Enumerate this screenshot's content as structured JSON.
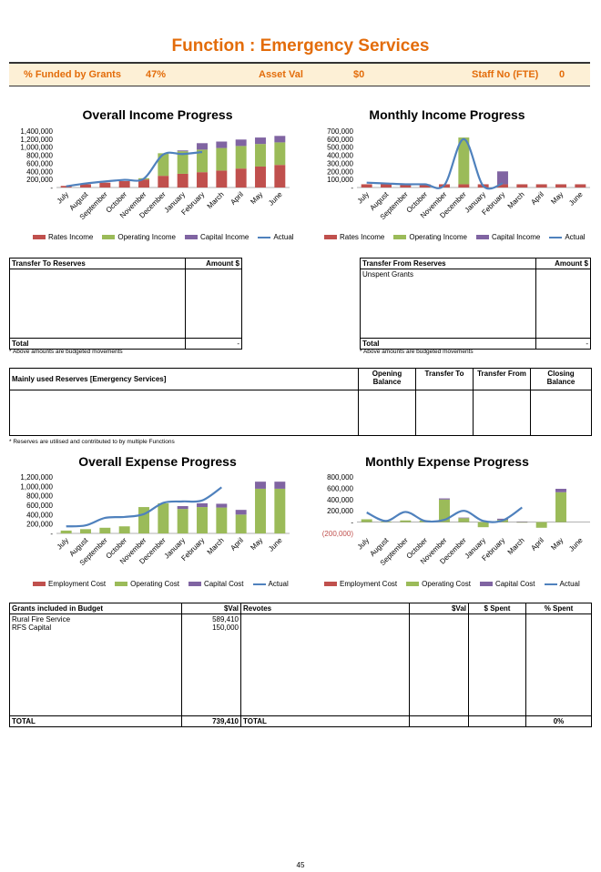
{
  "header": {
    "title": "Function : Emergency Services",
    "funded_label": "% Funded by Grants",
    "funded_value": "47%",
    "asset_label": "Asset Val",
    "asset_value": "$0",
    "staff_label": "Staff No (FTE)",
    "staff_value": "0"
  },
  "colors": {
    "title": "#e36c0a",
    "rates": "#c0504d",
    "operating": "#9bbb59",
    "capital": "#8064a2",
    "actual": "#4f81bd",
    "band": "#fdf0d6"
  },
  "months": [
    "July",
    "August",
    "September",
    "October",
    "November",
    "December",
    "January",
    "February",
    "March",
    "April",
    "May",
    "June"
  ],
  "chart_data": [
    {
      "type": "bar",
      "title": "Overall Income Progress",
      "stacked": true,
      "yticks": [
        "1,400,000",
        "1,200,000",
        "1,000,000",
        "800,000",
        "600,000",
        "400,000",
        "200,000",
        "-"
      ],
      "ylim": [
        0,
        1400000
      ],
      "series": [
        {
          "name": "Rates Income",
          "color": "#c0504d",
          "values": [
            40000,
            80000,
            120000,
            160000,
            200000,
            290000,
            340000,
            380000,
            420000,
            470000,
            520000,
            560000
          ]
        },
        {
          "name": "Operating Income",
          "color": "#9bbb59",
          "values": [
            0,
            0,
            0,
            0,
            30000,
            560000,
            560000,
            560000,
            560000,
            560000,
            560000,
            560000
          ]
        },
        {
          "name": "Capital Income",
          "color": "#8064a2",
          "values": [
            0,
            0,
            0,
            0,
            0,
            0,
            20000,
            160000,
            160000,
            160000,
            160000,
            160000
          ]
        }
      ],
      "actual": {
        "name": "Actual",
        "values": [
          30000,
          100000,
          150000,
          190000,
          220000,
          820000,
          830000,
          880000,
          null,
          null,
          null,
          null
        ]
      },
      "legend": [
        "Rates Income",
        "Operating Income",
        "Capital Income",
        "Actual"
      ]
    },
    {
      "type": "bar",
      "title": "Monthly Income Progress",
      "stacked": true,
      "yticks": [
        "700,000",
        "600,000",
        "500,000",
        "400,000",
        "300,000",
        "200,000",
        "100,000",
        "-"
      ],
      "ylim": [
        0,
        700000
      ],
      "series": [
        {
          "name": "Rates Income",
          "color": "#c0504d",
          "values": [
            40000,
            40000,
            40000,
            40000,
            40000,
            40000,
            40000,
            40000,
            40000,
            40000,
            40000,
            40000
          ]
        },
        {
          "name": "Operating Income",
          "color": "#9bbb59",
          "values": [
            0,
            0,
            0,
            0,
            0,
            580000,
            0,
            0,
            0,
            0,
            0,
            0
          ]
        },
        {
          "name": "Capital Income",
          "color": "#8064a2",
          "values": [
            0,
            0,
            0,
            0,
            0,
            0,
            0,
            160000,
            0,
            0,
            0,
            0
          ]
        }
      ],
      "actual": {
        "name": "Actual",
        "values": [
          60000,
          50000,
          40000,
          40000,
          30000,
          600000,
          20000,
          50000,
          null,
          null,
          null,
          null
        ]
      },
      "legend": [
        "Rates Income",
        "Operating Income",
        "Capital Income",
        "Actual"
      ]
    },
    {
      "type": "bar",
      "title": "Overall Expense Progress",
      "stacked": true,
      "yticks": [
        "1,200,000",
        "1,000,000",
        "800,000",
        "600,000",
        "400,000",
        "200,000",
        "-"
      ],
      "ylim": [
        0,
        1200000
      ],
      "series": [
        {
          "name": "Employment Cost",
          "color": "#c0504d",
          "values": [
            0,
            0,
            0,
            0,
            0,
            0,
            0,
            0,
            0,
            0,
            0,
            0
          ]
        },
        {
          "name": "Operating Cost",
          "color": "#9bbb59",
          "values": [
            60000,
            90000,
            120000,
            150000,
            560000,
            640000,
            520000,
            560000,
            550000,
            400000,
            950000,
            950000
          ]
        },
        {
          "name": "Capital Cost",
          "color": "#8064a2",
          "values": [
            0,
            0,
            0,
            0,
            0,
            0,
            60000,
            80000,
            80000,
            100000,
            150000,
            150000
          ]
        }
      ],
      "actual": {
        "name": "Actual",
        "values": [
          150000,
          170000,
          330000,
          350000,
          410000,
          650000,
          680000,
          700000,
          980000,
          null,
          null,
          null
        ]
      },
      "legend": [
        "Employment Cost",
        "Operating Cost",
        "Capital Cost",
        "Actual"
      ]
    },
    {
      "type": "bar",
      "title": "Monthly Expense Progress",
      "stacked": true,
      "yticks": [
        "800,000",
        "600,000",
        "400,000",
        "200,000",
        "-",
        "(200,000)"
      ],
      "ylim": [
        -200000,
        800000
      ],
      "series": [
        {
          "name": "Employment Cost",
          "color": "#c0504d",
          "values": [
            0,
            0,
            0,
            0,
            0,
            0,
            0,
            0,
            0,
            0,
            0,
            0
          ]
        },
        {
          "name": "Operating Cost",
          "color": "#9bbb59",
          "values": [
            50000,
            10000,
            30000,
            30000,
            400000,
            70000,
            -90000,
            40000,
            -10000,
            -100000,
            530000,
            0
          ]
        },
        {
          "name": "Capital Cost",
          "color": "#8064a2",
          "values": [
            0,
            0,
            0,
            0,
            20000,
            10000,
            0,
            20000,
            10000,
            0,
            60000,
            0
          ]
        }
      ],
      "actual": {
        "name": "Actual",
        "values": [
          170000,
          20000,
          180000,
          20000,
          40000,
          200000,
          20000,
          30000,
          260000,
          null,
          null,
          null
        ]
      },
      "legend": [
        "Employment Cost",
        "Operating Cost",
        "Capital Cost",
        "Actual"
      ]
    }
  ],
  "transfer_to": {
    "header": "Transfer To Reserves",
    "amount_header": "Amount $",
    "rows": [],
    "total_label": "Total",
    "total_value": "-",
    "note": "* Above amounts are budgeted movements"
  },
  "transfer_from": {
    "header": "Transfer From Reserves",
    "amount_header": "Amount $",
    "rows": [
      "Unspent Grants"
    ],
    "total_label": "Total",
    "total_value": "-",
    "note": "* Above amounts are budgeted movements"
  },
  "reserves": {
    "header": "Mainly used Reserves [Emergency Services]",
    "cols": [
      "Opening Balance",
      "Transfer To",
      "Transfer From",
      "Closing Balance"
    ],
    "note": "* Reserves are utilised and contributed to by multiple Functions"
  },
  "grants": {
    "header": "Grants included in Budget",
    "val_header": "$Val",
    "rows": [
      {
        "name": "Rural Fire Service",
        "val": "589,410"
      },
      {
        "name": "RFS Capital",
        "val": "150,000"
      }
    ],
    "total_label": "TOTAL",
    "total_value": "739,410"
  },
  "revotes": {
    "header": "Revotes",
    "val_header": "$Val",
    "spent_header": "$ Spent",
    "pct_header": "% Spent",
    "total_label": "TOTAL",
    "total_pct": "0%"
  },
  "page_number": "45"
}
